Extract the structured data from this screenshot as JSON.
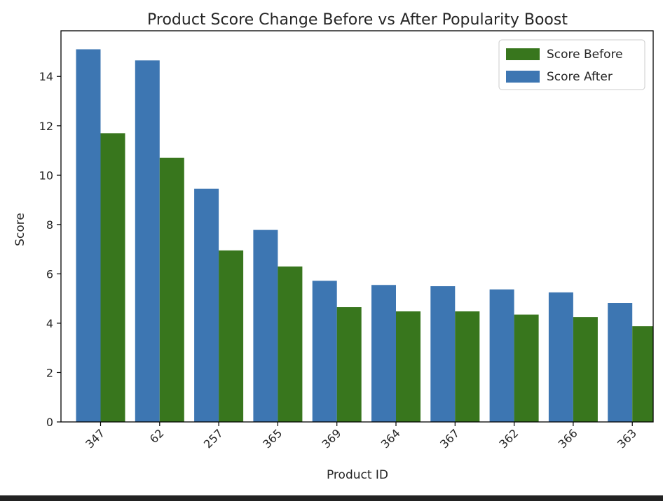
{
  "chart_data": {
    "type": "bar",
    "title": "Product Score Change Before vs After Popularity Boost",
    "xlabel": "Product ID",
    "ylabel": "Score",
    "categories": [
      "347",
      "62",
      "257",
      "365",
      "369",
      "364",
      "367",
      "362",
      "366",
      "363"
    ],
    "series": [
      {
        "name": "Score Before",
        "color": "#38761d",
        "values": [
          11.7,
          10.7,
          6.95,
          6.3,
          4.65,
          4.48,
          4.48,
          4.35,
          4.25,
          3.88
        ]
      },
      {
        "name": "Score After",
        "color": "#3d76b2",
        "values": [
          15.1,
          14.65,
          9.45,
          7.78,
          5.72,
          5.55,
          5.5,
          5.37,
          5.25,
          4.82
        ]
      }
    ],
    "ylim": [
      0,
      15.85
    ],
    "yticks": [
      0,
      2,
      4,
      6,
      8,
      10,
      12,
      14
    ],
    "legend_position": "top-right",
    "grid": false
  }
}
